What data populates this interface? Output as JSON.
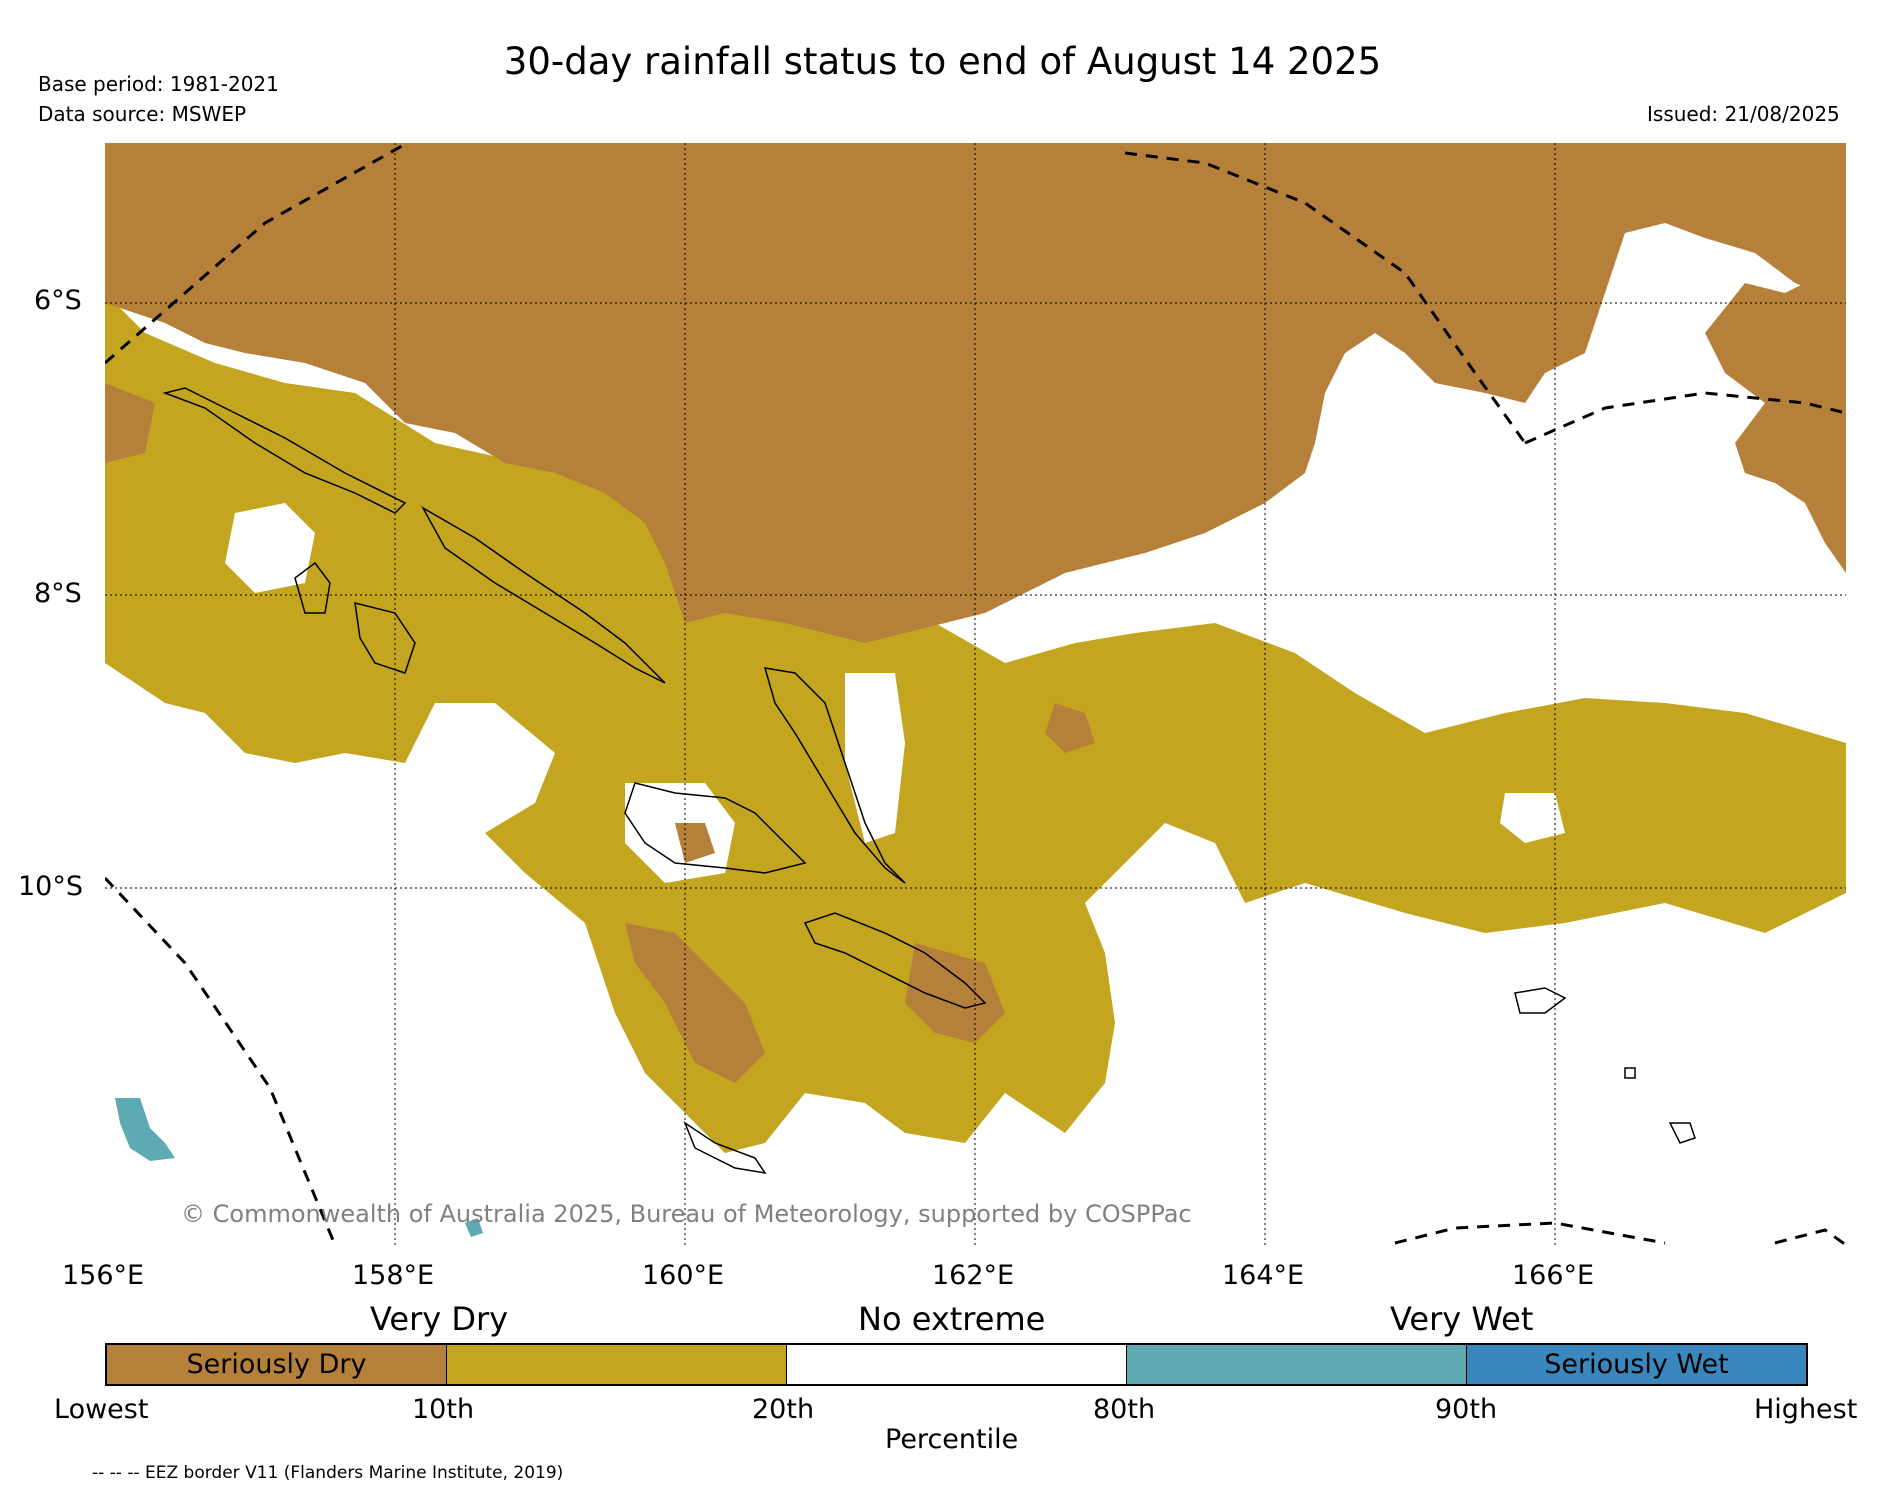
{
  "title": "30-day rainfall status to end of August 14 2025",
  "meta": {
    "base_period": "Base period: 1981-2021",
    "data_source": "Data source: MSWEP",
    "issued": "Issued: 21/08/2025"
  },
  "map": {
    "lat_labels": [
      "6°S",
      "8°S",
      "10°S"
    ],
    "lon_labels": [
      "156°E",
      "158°E",
      "160°E",
      "162°E",
      "164°E",
      "166°E"
    ],
    "copyright": "© Commonwealth of Australia 2025, Bureau of Meteorology, supported by COSPPac"
  },
  "legend": {
    "categories": [
      "Very Dry",
      "No extreme",
      "Very Wet"
    ],
    "segments": [
      {
        "label": "Seriously Dry",
        "color": "#b5803a"
      },
      {
        "label": "",
        "color": "#c3a520"
      },
      {
        "label": "",
        "color": "#ffffff"
      },
      {
        "label": "",
        "color": "#5eaab2"
      },
      {
        "label": "Seriously Wet",
        "color": "#3a87bd"
      }
    ],
    "ticks": [
      "Lowest",
      "10th",
      "20th",
      "80th",
      "90th",
      "Highest"
    ],
    "xlabel": "Percentile",
    "footnote": "-- -- -- EEZ border V11 (Flanders Marine Institute, 2019)"
  }
}
